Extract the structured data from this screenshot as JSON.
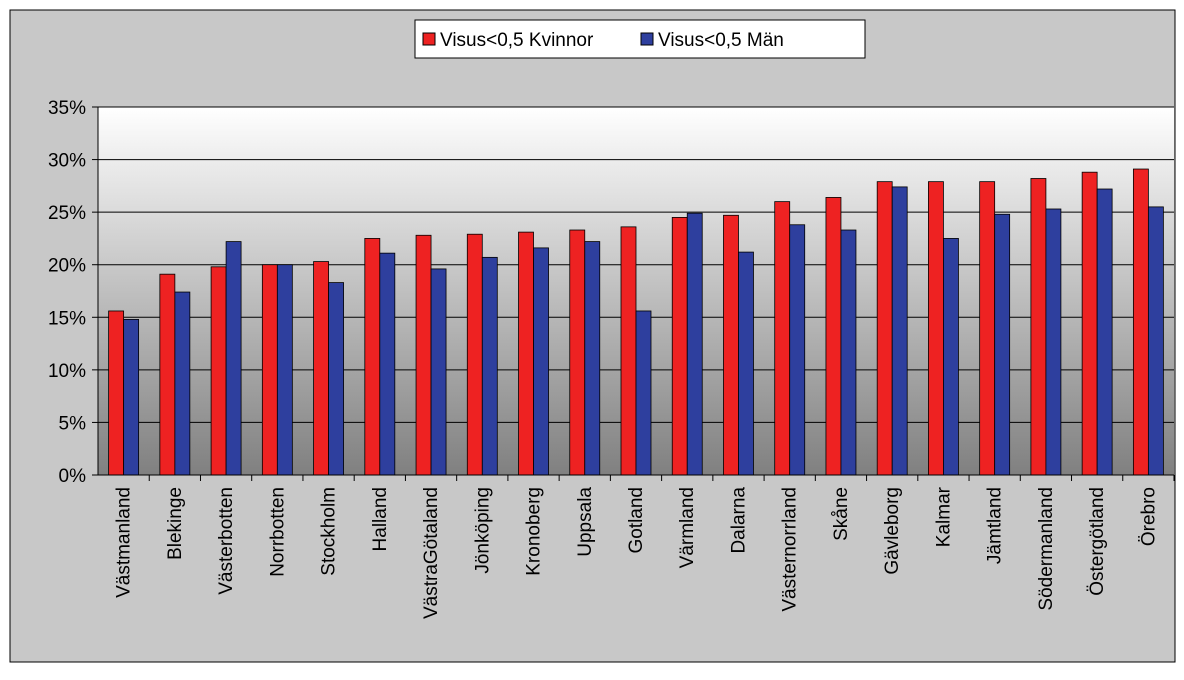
{
  "chart_data": {
    "type": "bar",
    "categories": [
      "Västmanland",
      "Blekinge",
      "Västerbotten",
      "Norrbotten",
      "Stockholm",
      "Halland",
      "VästraGötaland",
      "Jönköping",
      "Kronoberg",
      "Uppsala",
      "Gotland",
      "Värmland",
      "Dalarna",
      "Västernorrland",
      "Skåne",
      "Gävleborg",
      "Kalmar",
      "Jämtland",
      "Södermanland",
      "Östergötland",
      "Örebro"
    ],
    "series": [
      {
        "name": "Visus<0,5 Kvinnor",
        "color": "#ee2222",
        "values": [
          15.6,
          19.1,
          19.8,
          20.0,
          20.3,
          22.5,
          22.8,
          22.9,
          23.1,
          23.3,
          23.6,
          24.5,
          24.7,
          26.0,
          26.4,
          27.9,
          27.9,
          27.9,
          28.2,
          28.8,
          29.1
        ]
      },
      {
        "name": "Visus<0,5 Män",
        "color": "#2e3f9e",
        "values": [
          14.8,
          17.4,
          22.2,
          20.0,
          18.3,
          21.1,
          19.6,
          20.7,
          21.6,
          22.2,
          15.6,
          24.9,
          21.2,
          23.8,
          23.3,
          27.4,
          22.5,
          24.8,
          25.3,
          27.2,
          25.5
        ]
      }
    ],
    "ylim": [
      0,
      35
    ],
    "yticks": [
      {
        "value": 0,
        "label": "0%"
      },
      {
        "value": 5,
        "label": "5%"
      },
      {
        "value": 10,
        "label": "10%"
      },
      {
        "value": 15,
        "label": "15%"
      },
      {
        "value": 20,
        "label": "20%"
      },
      {
        "value": 25,
        "label": "25%"
      },
      {
        "value": 30,
        "label": "30%"
      },
      {
        "value": 35,
        "label": "35%"
      }
    ],
    "grid": true
  }
}
